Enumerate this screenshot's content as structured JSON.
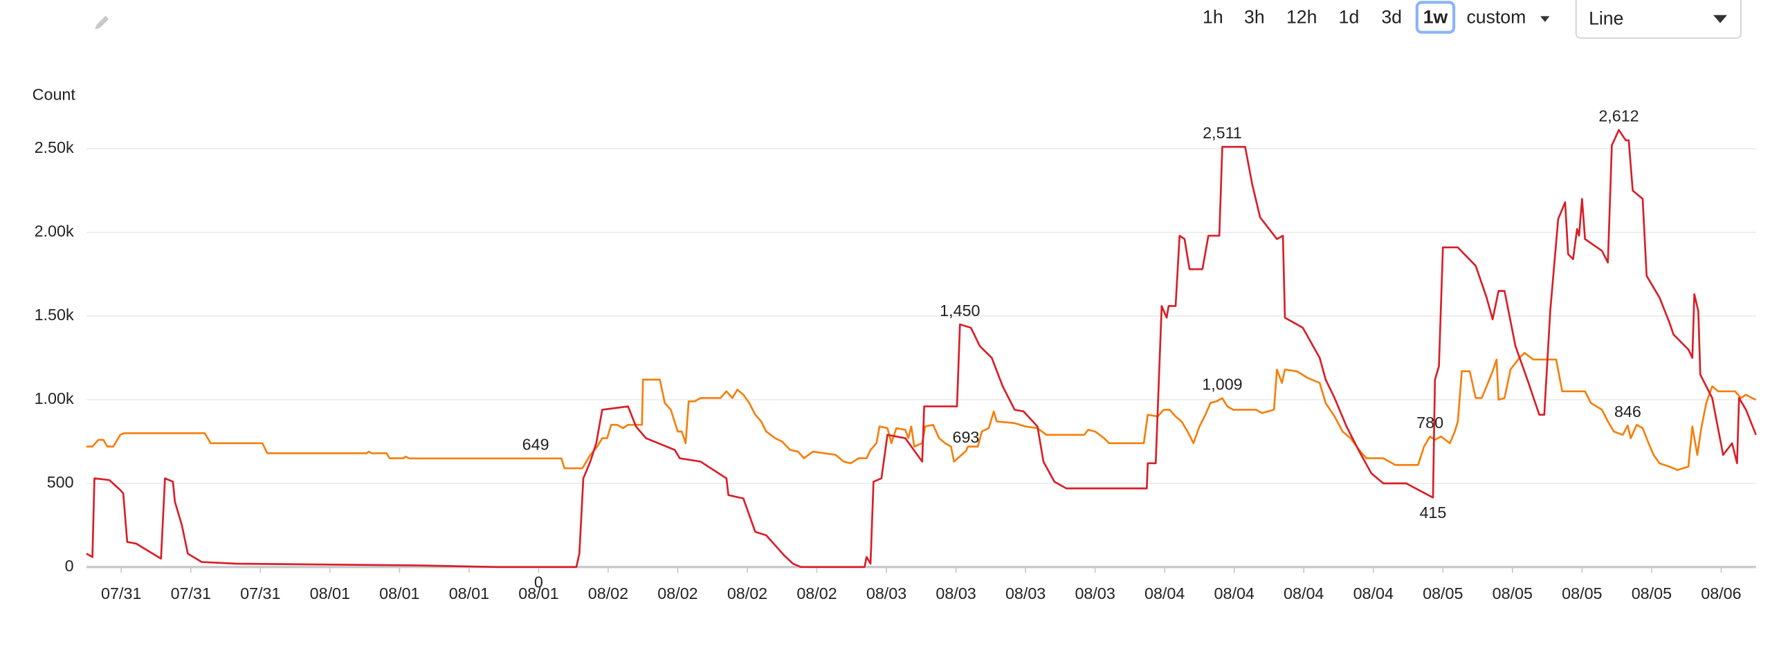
{
  "toolbar": {
    "ranges": [
      "1h",
      "3h",
      "12h",
      "1d",
      "3d",
      "1w"
    ],
    "selected": "1w",
    "custom": "custom",
    "chart_type": "Line"
  },
  "chart_data": {
    "type": "line",
    "ylabel": "Count",
    "grid": true,
    "xlim": [
      0,
      168
    ],
    "ylim": [
      0,
      2750
    ],
    "yticks": [
      0,
      500,
      {
        "value": 1000,
        "label": "1.00k"
      },
      {
        "value": 1500,
        "label": "1.50k"
      },
      {
        "value": 2000,
        "label": "2.00k"
      },
      {
        "value": 2500,
        "label": "2.50k"
      }
    ],
    "xticks": [
      {
        "value": 3.5,
        "label": "07/31"
      },
      {
        "value": 10.5,
        "label": "07/31"
      },
      {
        "value": 17.5,
        "label": "07/31"
      },
      {
        "value": 24.5,
        "label": "08/01"
      },
      {
        "value": 31.5,
        "label": "08/01"
      },
      {
        "value": 38.5,
        "label": "08/01"
      },
      {
        "value": 45.5,
        "label": "08/01"
      },
      {
        "value": 52.5,
        "label": "08/02"
      },
      {
        "value": 59.5,
        "label": "08/02"
      },
      {
        "value": 66.5,
        "label": "08/02"
      },
      {
        "value": 73.5,
        "label": "08/02"
      },
      {
        "value": 80.5,
        "label": "08/03"
      },
      {
        "value": 87.5,
        "label": "08/03"
      },
      {
        "value": 94.5,
        "label": "08/03"
      },
      {
        "value": 101.5,
        "label": "08/03"
      },
      {
        "value": 108.5,
        "label": "08/04"
      },
      {
        "value": 115.5,
        "label": "08/04"
      },
      {
        "value": 122.5,
        "label": "08/04"
      },
      {
        "value": 129.5,
        "label": "08/04"
      },
      {
        "value": 136.5,
        "label": "08/05"
      },
      {
        "value": 143.5,
        "label": "08/05"
      },
      {
        "value": 150.5,
        "label": "08/05"
      },
      {
        "value": 157.5,
        "label": "08/05"
      },
      {
        "value": 164.5,
        "label": "08/06"
      }
    ],
    "series": [
      {
        "color": "#f57f0c",
        "x": [
          0,
          0.6,
          1.2,
          1.7,
          2.1,
          2.7,
          3.4,
          3.8,
          11.9,
          12.5,
          17.7,
          18.2,
          28.2,
          28.4,
          28.7,
          30.2,
          30.5,
          31.9,
          32.1,
          32.5,
          45.2,
          47.8,
          48.1,
          49.9,
          50.7,
          51.4,
          51.9,
          52.4,
          52.8,
          53.4,
          54.0,
          54.5,
          55.9,
          56.0,
          57.7,
          58.2,
          58.8,
          59.5,
          59.9,
          60.3,
          60.6,
          61.2,
          61.8,
          63.8,
          64.4,
          65.0,
          65.5,
          66.1,
          66.7,
          67.3,
          67.9,
          68.4,
          69.3,
          70.0,
          70.8,
          71.6,
          72.2,
          73.1,
          75.4,
          76.2,
          76.9,
          77.7,
          78.5,
          78.9,
          79.5,
          79.8,
          80.6,
          81.0,
          81.5,
          82.4,
          82.7,
          83.0,
          83.3,
          84.1,
          84.4,
          85.2,
          85.8,
          86.4,
          87.0,
          87.3,
          88.5,
          88.7,
          89.7,
          90.1,
          90.8,
          91.3,
          91.6,
          93.4,
          94.5,
          95.7,
          96.6,
          100.4,
          100.8,
          101.5,
          102.4,
          102.9,
          106.4,
          106.8,
          107.8,
          108.4,
          109.0,
          109.6,
          110.2,
          110.8,
          111.4,
          112.0,
          112.6,
          113.1,
          113.7,
          114.3,
          114.8,
          115.4,
          116.6,
          117.7,
          118.3,
          118.9,
          119.5,
          119.8,
          120.3,
          120.6,
          121.8,
          122.9,
          124.1,
          124.7,
          125.6,
          126.4,
          127.2,
          128.2,
          128.8,
          130.5,
          131.7,
          134.0,
          134.6,
          135.2,
          135.7,
          136.3,
          137.2,
          137.7,
          138.0,
          138.4,
          139.2,
          139.8,
          140.4,
          140.9,
          141.5,
          141.9,
          142.1,
          142.7,
          143.3,
          144.2,
          144.7,
          145.6,
          147.9,
          148.5,
          150.8,
          151.4,
          152.5,
          153.1,
          153.7,
          154.6,
          155.1,
          155.4,
          156.0,
          156.6,
          157.2,
          157.7,
          158.3,
          159.3,
          160.1,
          161.2,
          161.6,
          162.1,
          162.5,
          163.0,
          163.6,
          164.2,
          165.9,
          166.5,
          167.0,
          167.6,
          168.0
        ],
        "values": [
          720,
          720,
          760,
          760,
          720,
          720,
          790,
          800,
          800,
          740,
          740,
          680,
          680,
          690,
          680,
          680,
          650,
          650,
          660,
          649,
          649,
          649,
          590,
          590,
          670,
          720,
          770,
          770,
          850,
          850,
          830,
          850,
          850,
          1120,
          1120,
          980,
          940,
          810,
          810,
          740,
          990,
          990,
          1010,
          1010,
          1050,
          1010,
          1060,
          1030,
          980,
          910,
          870,
          810,
          770,
          750,
          700,
          690,
          650,
          690,
          670,
          630,
          620,
          650,
          650,
          700,
          740,
          840,
          830,
          740,
          830,
          820,
          770,
          840,
          720,
          740,
          840,
          850,
          770,
          740,
          720,
          630,
          693,
          720,
          720,
          810,
          830,
          930,
          870,
          860,
          840,
          830,
          790,
          790,
          820,
          810,
          770,
          740,
          740,
          910,
          900,
          940,
          940,
          900,
          870,
          810,
          740,
          840,
          910,
          980,
          990,
          1009,
          960,
          940,
          940,
          940,
          920,
          930,
          940,
          1180,
          1100,
          1180,
          1170,
          1130,
          1100,
          980,
          900,
          810,
          770,
          690,
          650,
          650,
          610,
          610,
          720,
          780,
          760,
          780,
          740,
          810,
          870,
          1170,
          1170,
          1010,
          1010,
          1080,
          1170,
          1240,
          1000,
          1010,
          1180,
          1250,
          1280,
          1240,
          1240,
          1050,
          1050,
          980,
          940,
          870,
          810,
          790,
          846,
          770,
          850,
          830,
          740,
          670,
          620,
          600,
          580,
          600,
          840,
          670,
          830,
          980,
          1080,
          1050,
          1050,
          1010,
          1030,
          1010,
          1000
        ],
        "annotations": [
          {
            "x": 45.2,
            "value": 649,
            "label": "649"
          },
          {
            "x": 88.5,
            "value": 693,
            "label": "693"
          },
          {
            "x": 114.3,
            "value": 1009,
            "label": "1,009"
          },
          {
            "x": 135.2,
            "value": 780,
            "label": "780"
          },
          {
            "x": 155.1,
            "value": 846,
            "label": "846"
          }
        ]
      },
      {
        "color": "#d81e27",
        "x": [
          0,
          0.6,
          0.8,
          2.3,
          3.4,
          3.7,
          4.1,
          5.0,
          7.5,
          7.9,
          8.7,
          8.9,
          9.6,
          10.2,
          11.6,
          15.1,
          33.1,
          41.4,
          45.5,
          49.3,
          49.6,
          50.0,
          50.7,
          51.3,
          51.9,
          54.5,
          55.3,
          56.3,
          59.2,
          59.7,
          61.8,
          64.4,
          64.6,
          66.1,
          67.3,
          68.4,
          70.2,
          71.1,
          71.9,
          78.3,
          78.5,
          78.9,
          79.2,
          80.0,
          80.6,
          82.4,
          84.1,
          84.3,
          87.6,
          87.9,
          89.0,
          89.9,
          91.1,
          92.2,
          93.4,
          94.3,
          95.7,
          96.3,
          97.4,
          98.6,
          106.7,
          106.8,
          107.6,
          108.2,
          108.7,
          108.9,
          109.6,
          110.0,
          110.5,
          111.0,
          112.3,
          112.9,
          114.0,
          114.3,
          116.6,
          117.3,
          118.1,
          119.8,
          120.4,
          120.6,
          122.4,
          124.1,
          124.7,
          125.6,
          126.8,
          128.0,
          129.3,
          130.5,
          132.8,
          135.5,
          135.7,
          136.1,
          136.5,
          138.0,
          139.8,
          140.9,
          141.5,
          142.1,
          142.7,
          143.8,
          145.0,
          146.2,
          146.7,
          147.3,
          148.1,
          148.8,
          149.1,
          149.6,
          150.0,
          150.2,
          150.5,
          150.8,
          152.5,
          153.1,
          153.5,
          154.2,
          154.9,
          155.2,
          155.6,
          156.6,
          157.0,
          158.3,
          159.3,
          159.7,
          161.2,
          161.6,
          161.8,
          162.2,
          162.4,
          163.6,
          164.7,
          165.6,
          166.1,
          166.3,
          167.0,
          168.0
        ],
        "values": [
          80,
          60,
          530,
          520,
          460,
          440,
          150,
          140,
          50,
          530,
          510,
          390,
          250,
          80,
          30,
          20,
          10,
          0,
          0,
          0,
          80,
          530,
          630,
          740,
          940,
          960,
          840,
          770,
          700,
          650,
          630,
          530,
          430,
          410,
          210,
          190,
          70,
          20,
          0,
          0,
          60,
          20,
          510,
          530,
          790,
          770,
          630,
          960,
          960,
          1450,
          1430,
          1320,
          1250,
          1080,
          940,
          930,
          840,
          630,
          510,
          470,
          470,
          620,
          620,
          1560,
          1490,
          1560,
          1560,
          1980,
          1960,
          1780,
          1780,
          1980,
          1980,
          2511,
          2511,
          2290,
          2090,
          1960,
          1980,
          1490,
          1430,
          1250,
          1120,
          1010,
          840,
          700,
          560,
          500,
          500,
          415,
          1120,
          1200,
          1910,
          1910,
          1800,
          1610,
          1480,
          1650,
          1650,
          1320,
          1120,
          910,
          910,
          1530,
          2080,
          2180,
          1870,
          1840,
          2020,
          1980,
          2200,
          1960,
          1890,
          1820,
          2520,
          2612,
          2550,
          2550,
          2250,
          2200,
          1740,
          1610,
          1460,
          1390,
          1300,
          1250,
          1630,
          1530,
          1150,
          1010,
          670,
          740,
          620,
          1010,
          940,
          790
        ],
        "annotations": [
          {
            "x": 45.5,
            "value": 0,
            "label": "0"
          },
          {
            "x": 87.9,
            "value": 1450,
            "label": "1,450"
          },
          {
            "x": 114.3,
            "value": 2511,
            "label": "2,511"
          },
          {
            "x": 135.5,
            "value": 415,
            "label": "415"
          },
          {
            "x": 154.2,
            "value": 2612,
            "label": "2,612"
          }
        ]
      }
    ]
  }
}
